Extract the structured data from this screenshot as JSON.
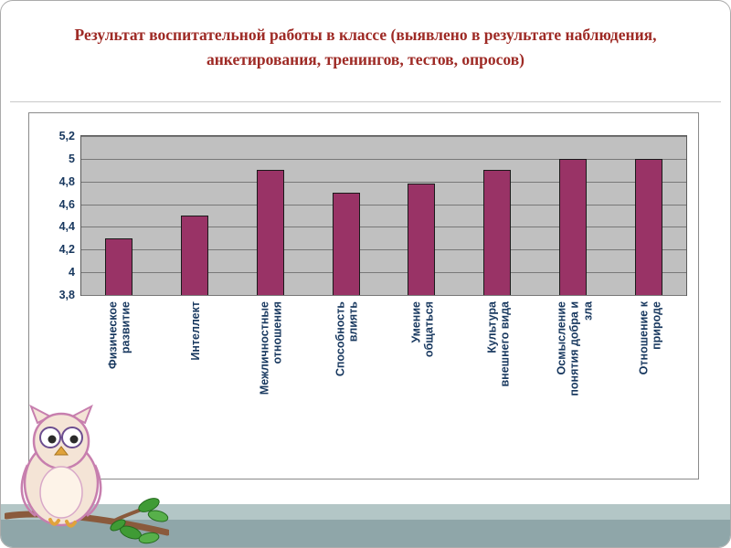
{
  "slide": {
    "title": "Результат воспитательной работы в классе (выявлено в результате наблюдения, анкетирования, тренингов, тестов, опросов)"
  },
  "chart_data": {
    "type": "bar",
    "title": "",
    "categories": [
      "Физическое развитие",
      "Интеллект",
      "Межличностные отношения",
      "Способность влиять",
      "Умение общаться",
      "Культура внешнего вида",
      "Осмысление понятия добра и зла",
      "Отношение к природе"
    ],
    "values": [
      4.3,
      4.5,
      4.9,
      4.7,
      4.78,
      4.9,
      5,
      5
    ],
    "ylim": [
      3.8,
      5.2
    ],
    "yticks": [
      3.8,
      4,
      4.2,
      4.4,
      4.6,
      4.8,
      5,
      5.2
    ],
    "ytick_labels": [
      "3,8",
      "4",
      "4,2",
      "4,4",
      "4,6",
      "4,8",
      "5",
      "5,2"
    ],
    "xlabel": "",
    "ylabel": "",
    "grid": true,
    "legend": "none",
    "bar_color": "#993366",
    "plot_bg": "#C0C0C0"
  },
  "decor": {
    "owl_icon": "owl-on-branch-illustration",
    "colors": {
      "title_text": "#9E2A25",
      "band_top": "#B3C6C6",
      "band_bottom": "#8FA6A9",
      "axis_text": "#17375E"
    }
  }
}
